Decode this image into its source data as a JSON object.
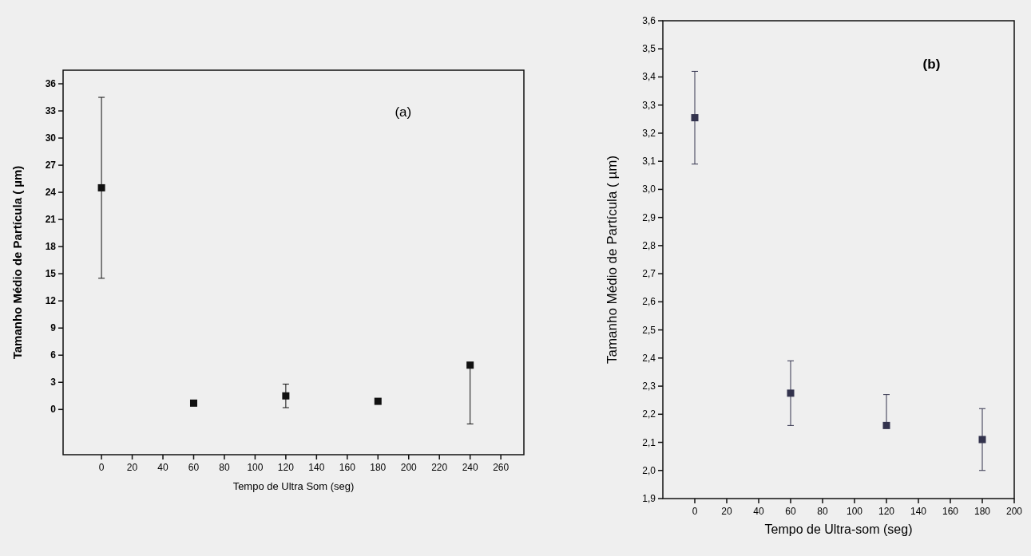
{
  "chart_data": [
    {
      "type": "scatter",
      "xlabel": "Tempo de Ultra Som (seg)",
      "ylabel": "Tamanho Médio de Partícula ( µm)",
      "annotations": [
        "(a)"
      ],
      "x": [
        0,
        60,
        120,
        180,
        240
      ],
      "values": [
        24.5,
        0.7,
        1.5,
        0.9,
        4.9
      ],
      "color": "#111111",
      "marker": "square",
      "errors": [
        [
          14.5,
          34.5
        ],
        null,
        [
          0.2,
          2.8
        ],
        null,
        [
          -1.6,
          4.9
        ]
      ],
      "xlim": [
        -25,
        275
      ],
      "xticks": [
        0,
        20,
        40,
        60,
        80,
        100,
        120,
        140,
        160,
        180,
        200,
        220,
        240,
        260
      ],
      "ylim": [
        -5,
        37.5
      ],
      "yticks": [
        0,
        3,
        6,
        9,
        12,
        15,
        18,
        21,
        24,
        27,
        30,
        33,
        36
      ]
    },
    {
      "type": "scatter",
      "xlabel": "Tempo de Ultra-som (seg)",
      "ylabel": "Tamanho Médio de Partícula ( µm)",
      "annotations": [
        "(b)"
      ],
      "x": [
        0,
        60,
        120,
        180
      ],
      "values": [
        3.255,
        2.275,
        2.16,
        2.11
      ],
      "color": "#33334d",
      "marker": "square",
      "errors": [
        [
          3.09,
          3.42
        ],
        [
          2.16,
          2.39
        ],
        [
          2.16,
          2.27
        ],
        [
          2.0,
          2.22
        ]
      ],
      "xlim": [
        -20,
        200
      ],
      "xticks": [
        0,
        20,
        40,
        60,
        80,
        100,
        120,
        140,
        160,
        180,
        200
      ],
      "ylim": [
        1.9,
        3.6
      ],
      "yticks": [
        {
          "value": 1.9,
          "label": "1,9"
        },
        {
          "value": 2.0,
          "label": "2,0"
        },
        {
          "value": 2.1,
          "label": "2,1"
        },
        {
          "value": 2.2,
          "label": "2,2"
        },
        {
          "value": 2.3,
          "label": "2,3"
        },
        {
          "value": 2.4,
          "label": "2,4"
        },
        {
          "value": 2.5,
          "label": "2,5"
        },
        {
          "value": 2.6,
          "label": "2,6"
        },
        {
          "value": 2.7,
          "label": "2,7"
        },
        {
          "value": 2.8,
          "label": "2,8"
        },
        {
          "value": 2.9,
          "label": "2,9"
        },
        {
          "value": 3.0,
          "label": "3,0"
        },
        {
          "value": 3.1,
          "label": "3,1"
        },
        {
          "value": 3.2,
          "label": "3,2"
        },
        {
          "value": 3.3,
          "label": "3,3"
        },
        {
          "value": 3.4,
          "label": "3,4"
        },
        {
          "value": 3.5,
          "label": "3,5"
        },
        {
          "value": 3.6,
          "label": "3,6"
        }
      ]
    }
  ]
}
